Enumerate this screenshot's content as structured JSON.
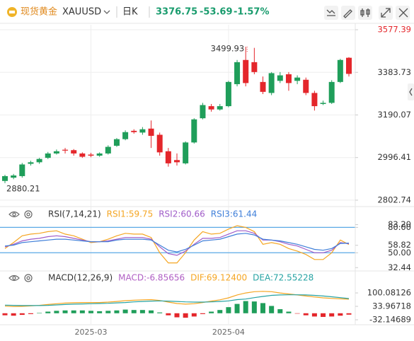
{
  "header": {
    "symbol_name": "现货黄金",
    "symbol": "XAUUSD",
    "period": "日K",
    "price": 3376.75,
    "change": -53.69,
    "change_pct": "-1.57%",
    "quote_color": "#1a9c6e"
  },
  "chart_data": [
    {
      "type": "candlestick",
      "open": [
        2890,
        2905,
        2912,
        2968,
        2975,
        2995,
        3015,
        3032,
        3030,
        3015,
        3010,
        3005,
        3015,
        3050,
        3080,
        3118,
        3110,
        3128,
        3100,
        3025,
        2985,
        2970,
        3065,
        3175,
        3230,
        3215,
        3230,
        3330,
        3440,
        3430,
        3340,
        3290,
        3345,
        3375,
        3345,
        3350,
        3290,
        3240,
        3245,
        3340,
        3450
      ],
      "high": [
        2918,
        2922,
        2972,
        2982,
        2995,
        3022,
        3033,
        3040,
        3035,
        3020,
        3018,
        3020,
        3052,
        3085,
        3120,
        3125,
        3135,
        3165,
        3110,
        3040,
        3015,
        3070,
        3175,
        3245,
        3240,
        3240,
        3345,
        3440,
        3499.93,
        3495,
        3365,
        3385,
        3385,
        3385,
        3370,
        3360,
        3300,
        3255,
        3348,
        3445,
        3453
      ],
      "low": [
        2880.21,
        2898,
        2905,
        2960,
        2968,
        2990,
        3010,
        3015,
        3005,
        2995,
        2998,
        3000,
        3010,
        3045,
        3075,
        3105,
        3100,
        3040,
        3005,
        2955,
        2960,
        2965,
        3060,
        3170,
        3205,
        3210,
        3225,
        3320,
        3320,
        3375,
        3285,
        3280,
        3335,
        3300,
        3330,
        3280,
        3210,
        3235,
        3240,
        3335,
        3365
      ],
      "close": [
        2912,
        2915,
        2965,
        2975,
        2990,
        3015,
        3025,
        3028,
        3015,
        3000,
        3005,
        3015,
        3045,
        3080,
        3112,
        3112,
        3125,
        3095,
        3020,
        2970,
        2975,
        3065,
        3170,
        3235,
        3215,
        3230,
        3340,
        3430,
        3335,
        3385,
        3295,
        3380,
        3370,
        3335,
        3360,
        3290,
        3230,
        3245,
        3340,
        3440,
        3376.75
      ],
      "up_color": "#1f9e5a",
      "down_color": "#e4262b",
      "max_label": "3499.93",
      "min_label": "2880.21",
      "ylim": [
        2780,
        3600
      ],
      "yticks": [
        3577.39,
        3383.73,
        3190.07,
        2996.41,
        2802.74
      ],
      "ytick_colors": [
        "#e4262b",
        "#333333",
        "#333333",
        "#333333",
        "#333333"
      ],
      "grid": true
    },
    {
      "type": "line",
      "title": "RSI(7,14,21)",
      "series": [
        {
          "name": "RSI1:59.75",
          "color": "#f5a623",
          "values": [
            55,
            62,
            70,
            72,
            73,
            75,
            76,
            72,
            70,
            66,
            62,
            63,
            66,
            70,
            73,
            72,
            72,
            68,
            50,
            38,
            38,
            50,
            65,
            75,
            72,
            73,
            78,
            82,
            80,
            75,
            60,
            62,
            60,
            55,
            52,
            48,
            42,
            42,
            50,
            65,
            59.75
          ]
        },
        {
          "name": "RSI2:60.66",
          "color": "#a05cc8",
          "values": [
            57,
            60,
            64,
            66,
            67,
            69,
            70,
            69,
            67,
            65,
            63,
            63,
            64,
            66,
            68,
            68,
            68,
            66,
            57,
            49,
            47,
            52,
            60,
            67,
            67,
            68,
            72,
            76,
            76,
            73,
            65,
            65,
            63,
            60,
            58,
            54,
            50,
            50,
            53,
            62,
            60.66
          ]
        },
        {
          "name": "RSI3:61.44",
          "color": "#3f7fd9",
          "values": [
            58,
            59,
            62,
            63,
            64,
            65,
            66,
            66,
            65,
            64,
            63,
            63,
            63,
            65,
            66,
            66,
            66,
            65,
            59,
            53,
            51,
            54,
            59,
            64,
            65,
            66,
            69,
            72,
            73,
            71,
            66,
            65,
            64,
            62,
            60,
            57,
            54,
            53,
            55,
            61,
            61.44
          ]
        }
      ],
      "ylim": [
        31,
        87
      ],
      "yticks": [
        {
          "value": 80,
          "label": "80.00"
        },
        {
          "value": 83.2,
          "label": "83.20"
        },
        58.82,
        {
          "value": 50,
          "label": "50.00"
        },
        32.44
      ],
      "hlines": [
        80,
        50
      ],
      "hline_color": "#5aa9e6"
    },
    {
      "type": "macd",
      "title": "MACD(12,26,9)",
      "series": [
        {
          "name": "MACD:-6.85656",
          "style": "histogram",
          "color": "#b05fc4",
          "up_color": "#1f9e5a",
          "down_color": "#e4262b",
          "values": [
            -10,
            -12,
            -8,
            -4,
            2,
            8,
            12,
            14,
            14,
            14,
            12,
            10,
            12,
            14,
            18,
            16,
            16,
            14,
            4,
            -10,
            -20,
            -22,
            -16,
            -4,
            8,
            16,
            30,
            46,
            60,
            58,
            50,
            36,
            20,
            8,
            -2,
            -10,
            -16,
            -18,
            -16,
            -12,
            -6.85656
          ]
        },
        {
          "name": "DIF:69.12400",
          "style": "line",
          "color": "#f5a623",
          "values": [
            35,
            33,
            34,
            36,
            39,
            43,
            47,
            50,
            52,
            53,
            53,
            53,
            55,
            58,
            62,
            64,
            66,
            67,
            63,
            55,
            48,
            45,
            47,
            53,
            60,
            66,
            76,
            90,
            100,
            106,
            108,
            106,
            100,
            95,
            90,
            85,
            80,
            76,
            73,
            71,
            69.124
          ]
        },
        {
          "name": "DEA:72.55228",
          "style": "line",
          "color": "#26a3a3",
          "values": [
            40,
            39,
            38,
            38,
            38,
            39,
            41,
            43,
            45,
            46,
            47,
            48,
            49,
            51,
            53,
            56,
            58,
            60,
            61,
            60,
            58,
            56,
            55,
            55,
            56,
            58,
            61,
            67,
            70,
            77,
            83,
            88,
            90,
            91,
            91,
            90,
            88,
            85,
            81,
            77,
            72.55228
          ]
        }
      ],
      "categories": [
        null,
        null,
        null,
        null,
        null,
        null,
        null,
        null,
        null,
        null,
        "2025-03",
        null,
        null,
        null,
        null,
        null,
        null,
        null,
        null,
        null,
        null,
        null,
        null,
        null,
        null,
        null,
        "2025-04",
        null,
        null,
        null,
        null,
        null,
        null,
        null,
        null,
        null,
        null,
        null,
        null,
        null,
        null
      ],
      "ylim": [
        -53,
        149
      ],
      "yticks": [
        100.08126,
        33.96718,
        -32.14689
      ]
    }
  ]
}
